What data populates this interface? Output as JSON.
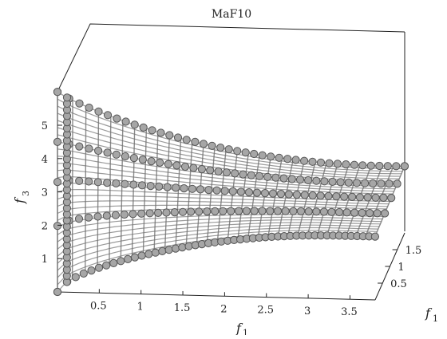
{
  "chart_data": {
    "type": "scatter",
    "projection": "3d",
    "title": "MaF10",
    "xlabel": "f",
    "xlabel_subscript": "1",
    "ylabel": "f",
    "ylabel_subscript": "1",
    "zlabel": "f",
    "zlabel_subscript": "3",
    "x_ticks": [
      "0.5",
      "1",
      "1.5",
      "2",
      "2.5",
      "3",
      "3.5"
    ],
    "y_ticks": [
      "0.5",
      "1",
      "1.5"
    ],
    "z_ticks": [
      "1",
      "2",
      "3",
      "4",
      "5"
    ],
    "xlim": [
      0,
      3.8
    ],
    "ylim": [
      0,
      2
    ],
    "zlim": [
      0,
      6
    ],
    "grid": false,
    "legend": "none",
    "marker": "circle",
    "marker_color": "#a6a6a6",
    "marker_edge_color": "#555555",
    "surface_description_free": true,
    "series": [
      {
        "points": [
          [
            0.0,
            0.0,
            6.0
          ],
          [
            0.05,
            0.1,
            5.8
          ],
          [
            0.1,
            0.2,
            5.55
          ],
          [
            0.3,
            0.5,
            5.1
          ],
          [
            0.6,
            0.8,
            4.6
          ],
          [
            1.0,
            1.0,
            4.1
          ],
          [
            1.4,
            1.2,
            3.6
          ],
          [
            1.8,
            1.4,
            3.2
          ],
          [
            2.2,
            1.6,
            2.8
          ],
          [
            2.6,
            1.7,
            2.5
          ],
          [
            3.0,
            1.8,
            2.2
          ],
          [
            3.4,
            1.9,
            2.05
          ],
          [
            3.8,
            2.0,
            2.0
          ],
          [
            0.0,
            0.0,
            0.0
          ],
          [
            0.5,
            0.0,
            1.1
          ],
          [
            1.0,
            0.0,
            1.4
          ],
          [
            1.5,
            0.0,
            1.55
          ],
          [
            2.0,
            0.0,
            1.7
          ],
          [
            2.5,
            0.0,
            1.8
          ],
          [
            3.0,
            0.0,
            1.85
          ],
          [
            3.5,
            0.0,
            1.9
          ]
        ]
      }
    ]
  }
}
